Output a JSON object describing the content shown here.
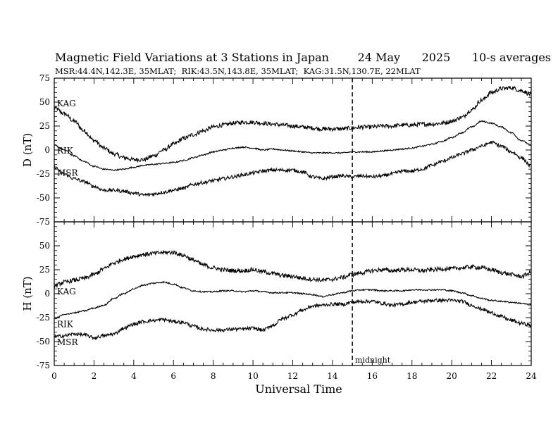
{
  "chart_data": {
    "type": "line",
    "title": "Magnetic Field Variations at 3 Stations in Japan        24 May      2025      10-s averages",
    "subtitle": "MSR:44.4N,142.3E, 35MLAT;  RIK:43.5N,143.8E, 35MLAT;  KAG:31.5N,130.7E, 22MLAT",
    "xlabel": "Universal Time",
    "xlim": [
      0,
      24
    ],
    "xticks": [
      "0",
      "2",
      "4",
      "6",
      "8",
      "10",
      "12",
      "14",
      "16",
      "18",
      "20",
      "22",
      "24"
    ],
    "annotation": "midnight",
    "midnight_x": 15,
    "panels": [
      {
        "ylabel": "D (nT)",
        "ylim": [
          -75,
          75
        ],
        "yticks": [
          "75",
          "50",
          "25",
          "0",
          "-25",
          "-50",
          "-75"
        ],
        "series": [
          {
            "name": "KAG",
            "noise": 2.2,
            "x": [
              0,
              0.5,
              1,
              1.5,
              2,
              2.5,
              3,
              3.5,
              4,
              4.5,
              5,
              5.5,
              6,
              6.5,
              7,
              7.5,
              8,
              8.5,
              9,
              9.5,
              10,
              10.5,
              11,
              11.5,
              12,
              12.5,
              13,
              13.5,
              14,
              14.5,
              15,
              15.5,
              16,
              16.5,
              17,
              17.5,
              18,
              18.5,
              19,
              19.5,
              20,
              20.5,
              21,
              21.5,
              22,
              22.5,
              23,
              23.5,
              24
            ],
            "values": [
              44,
              38,
              30,
              20,
              10,
              2,
              -4,
              -8,
              -10,
              -10,
              -6,
              0,
              6,
              12,
              16,
              20,
              24,
              26,
              28,
              29,
              29,
              28,
              27,
              26,
              25,
              24,
              23,
              22,
              22,
              22,
              23,
              24,
              24,
              25,
              25,
              26,
              26,
              27,
              27,
              28,
              30,
              34,
              42,
              52,
              60,
              64,
              65,
              62,
              58
            ]
          },
          {
            "name": "RIK",
            "noise": 0.7,
            "x": [
              0,
              0.5,
              1,
              1.5,
              2,
              2.5,
              3,
              3.5,
              4,
              4.5,
              5,
              5.5,
              6,
              6.5,
              7,
              7.5,
              8,
              8.5,
              9,
              9.5,
              10,
              10.5,
              11,
              11.5,
              12,
              12.5,
              13,
              13.5,
              14,
              14.5,
              15,
              15.5,
              16,
              16.5,
              17,
              17.5,
              18,
              18.5,
              19,
              19.5,
              20,
              20.5,
              21,
              21.5,
              22,
              22.5,
              23,
              23.5,
              24
            ],
            "values": [
              5,
              0,
              -6,
              -12,
              -17,
              -20,
              -21,
              -20,
              -18,
              -16,
              -15,
              -14,
              -13,
              -11,
              -8,
              -5,
              -2,
              0,
              2,
              3,
              2,
              0,
              1,
              0,
              -1,
              -2,
              -3,
              -3,
              -3,
              -3,
              -2,
              -2,
              -2,
              -1,
              0,
              1,
              2,
              4,
              6,
              9,
              13,
              18,
              24,
              30,
              28,
              24,
              18,
              10,
              5
            ]
          },
          {
            "name": "MSR",
            "noise": 1.8,
            "x": [
              0,
              0.5,
              1,
              1.5,
              2,
              2.5,
              3,
              3.5,
              4,
              4.5,
              5,
              5.5,
              6,
              6.5,
              7,
              7.5,
              8,
              8.5,
              9,
              9.5,
              10,
              10.5,
              11,
              11.5,
              12,
              12.5,
              13,
              13.5,
              14,
              14.5,
              15,
              15.5,
              16,
              16.5,
              17,
              17.5,
              18,
              18.5,
              19,
              19.5,
              20,
              20.5,
              21,
              21.5,
              22,
              22.5,
              23,
              23.5,
              24
            ],
            "values": [
              -18,
              -25,
              -30,
              -33,
              -38,
              -42,
              -42,
              -43,
              -45,
              -47,
              -46,
              -44,
              -42,
              -40,
              -36,
              -34,
              -32,
              -30,
              -28,
              -26,
              -24,
              -22,
              -21,
              -21,
              -21,
              -23,
              -28,
              -30,
              -28,
              -27,
              -28,
              -27,
              -28,
              -27,
              -25,
              -22,
              -22,
              -20,
              -16,
              -12,
              -8,
              -4,
              0,
              4,
              8,
              4,
              -2,
              -8,
              -17
            ]
          }
        ]
      },
      {
        "ylabel": "H (nT)",
        "ylim": [
          -75,
          75
        ],
        "yticks": [
          "75",
          "50",
          "25",
          "0",
          "-25",
          "-50",
          "-75"
        ],
        "series": [
          {
            "name": "KAG",
            "noise": 2.2,
            "x": [
              0,
              0.5,
              1,
              1.5,
              2,
              2.5,
              3,
              3.5,
              4,
              4.5,
              5,
              5.5,
              6,
              6.5,
              7,
              7.5,
              8,
              8.5,
              9,
              9.5,
              10,
              10.5,
              11,
              11.5,
              12,
              12.5,
              13,
              13.5,
              14,
              14.5,
              15,
              15.5,
              16,
              16.5,
              17,
              17.5,
              18,
              18.5,
              19,
              19.5,
              20,
              20.5,
              21,
              21.5,
              22,
              22.5,
              23,
              23.5,
              24
            ],
            "values": [
              8,
              12,
              14,
              16,
              20,
              26,
              32,
              36,
              39,
              41,
              42,
              43,
              43,
              40,
              35,
              30,
              27,
              25,
              24,
              24,
              25,
              23,
              21,
              19,
              18,
              16,
              15,
              14,
              15,
              17,
              20,
              22,
              24,
              25,
              24,
              25,
              25,
              24,
              25,
              26,
              26,
              27,
              28,
              27,
              25,
              22,
              20,
              18,
              22
            ]
          },
          {
            "name": "RIK",
            "noise": 0.7,
            "x": [
              0,
              0.5,
              1,
              1.5,
              2,
              2.5,
              3,
              3.5,
              4,
              4.5,
              5,
              5.5,
              6,
              6.5,
              7,
              7.5,
              8,
              8.5,
              9,
              9.5,
              10,
              10.5,
              11,
              11.5,
              12,
              12.5,
              13,
              13.5,
              14,
              14.5,
              15,
              15.5,
              16,
              16.5,
              17,
              17.5,
              18,
              18.5,
              19,
              19.5,
              20,
              20.5,
              21,
              21.5,
              22,
              22.5,
              23,
              23.5,
              24
            ],
            "values": [
              -26,
              -22,
              -20,
              -18,
              -15,
              -12,
              -5,
              0,
              5,
              9,
              11,
              12,
              10,
              6,
              3,
              2,
              2,
              3,
              3,
              2,
              3,
              2,
              1,
              1,
              1,
              0,
              -1,
              -3,
              -1,
              1,
              3,
              4,
              4,
              3,
              3,
              3,
              4,
              4,
              4,
              4,
              3,
              1,
              -2,
              -5,
              -7,
              -8,
              -9,
              -10,
              -12
            ]
          },
          {
            "name": "MSR",
            "noise": 1.8,
            "x": [
              0,
              0.5,
              1,
              1.5,
              2,
              2.5,
              3,
              3.5,
              4,
              4.5,
              5,
              5.5,
              6,
              6.5,
              7,
              7.5,
              8,
              8.5,
              9,
              9.5,
              10,
              10.5,
              11,
              11.5,
              12,
              12.5,
              13,
              13.5,
              14,
              14.5,
              15,
              15.5,
              16,
              16.5,
              17,
              17.5,
              18,
              18.5,
              19,
              19.5,
              20,
              20.5,
              21,
              21.5,
              22,
              22.5,
              23,
              23.5,
              24
            ],
            "values": [
              -45,
              -44,
              -42,
              -43,
              -46,
              -44,
              -42,
              -36,
              -32,
              -29,
              -28,
              -27,
              -29,
              -30,
              -34,
              -37,
              -38,
              -38,
              -37,
              -37,
              -36,
              -38,
              -33,
              -26,
              -22,
              -17,
              -13,
              -12,
              -11,
              -11,
              -9,
              -8,
              -8,
              -10,
              -12,
              -11,
              -9,
              -8,
              -7,
              -7,
              -7,
              -8,
              -12,
              -16,
              -20,
              -24,
              -28,
              -31,
              -33
            ]
          }
        ]
      }
    ]
  }
}
